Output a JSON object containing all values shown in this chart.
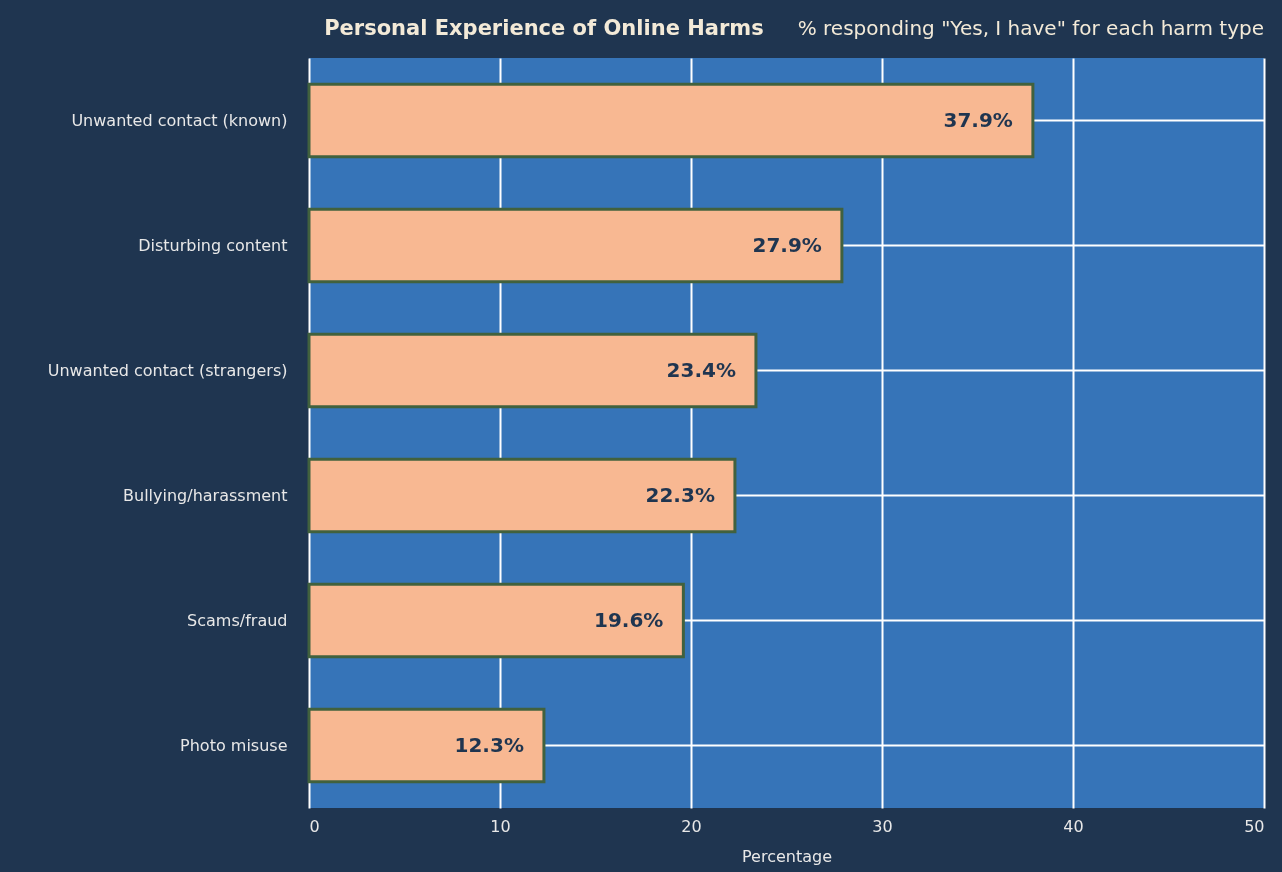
{
  "chart_data": {
    "type": "bar",
    "orientation": "horizontal",
    "title": "Personal Experience of Online Harms",
    "subtitle": "% responding \"Yes, I have\" for each harm type",
    "xlabel": "Percentage",
    "categories": [
      "Unwanted contact (known)",
      "Disturbing content",
      "Unwanted contact (strangers)",
      "Bullying/harassment",
      "Scams/fraud",
      "Photo misuse"
    ],
    "values": [
      37.9,
      27.9,
      23.4,
      22.3,
      19.6,
      12.3
    ],
    "value_labels": [
      "37.9%",
      "27.9%",
      "23.4%",
      "22.3%",
      "19.6%",
      "12.3%"
    ],
    "color": "#f8b892",
    "xlim": [
      0,
      50
    ],
    "xticks": [
      0,
      10,
      20,
      30,
      40,
      50
    ],
    "grid": true
  }
}
